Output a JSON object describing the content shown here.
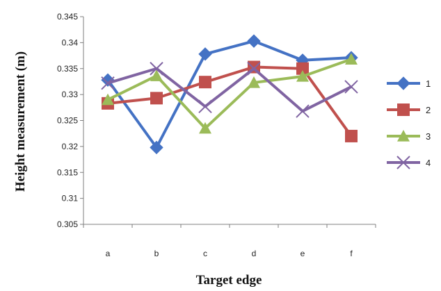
{
  "chart_data": {
    "type": "line",
    "title": "",
    "xlabel": "Target edge",
    "ylabel": "Height measurement (m)",
    "categories": [
      "a",
      "b",
      "c",
      "d",
      "e",
      "f"
    ],
    "ylim": [
      0.305,
      0.345
    ],
    "yticks": [
      0.305,
      0.31,
      0.315,
      0.32,
      0.325,
      0.33,
      0.335,
      0.34,
      0.345
    ],
    "ytick_labels": [
      "0.305",
      "0.31",
      "0.315",
      "0.32",
      "0.325",
      "0.33",
      "0.335",
      "0.34",
      "0.345"
    ],
    "grid": false,
    "legend_position": "right",
    "series": [
      {
        "name": "1",
        "values": [
          0.3328,
          0.3198,
          0.3378,
          0.3403,
          0.3366,
          0.3371
        ],
        "color": "#4472C4",
        "marker": "diamond"
      },
      {
        "name": "2",
        "values": [
          0.3283,
          0.3293,
          0.3324,
          0.3353,
          0.335,
          0.322
        ],
        "color": "#C0504D",
        "marker": "square"
      },
      {
        "name": "3",
        "values": [
          0.329,
          0.3336,
          0.3235,
          0.3323,
          0.3335,
          0.3368
        ],
        "color": "#9BBB59",
        "marker": "triangle"
      },
      {
        "name": "4",
        "values": [
          0.3322,
          0.335,
          0.3277,
          0.335,
          0.3268,
          0.3315
        ],
        "color": "#8064A2",
        "marker": "x"
      }
    ]
  }
}
